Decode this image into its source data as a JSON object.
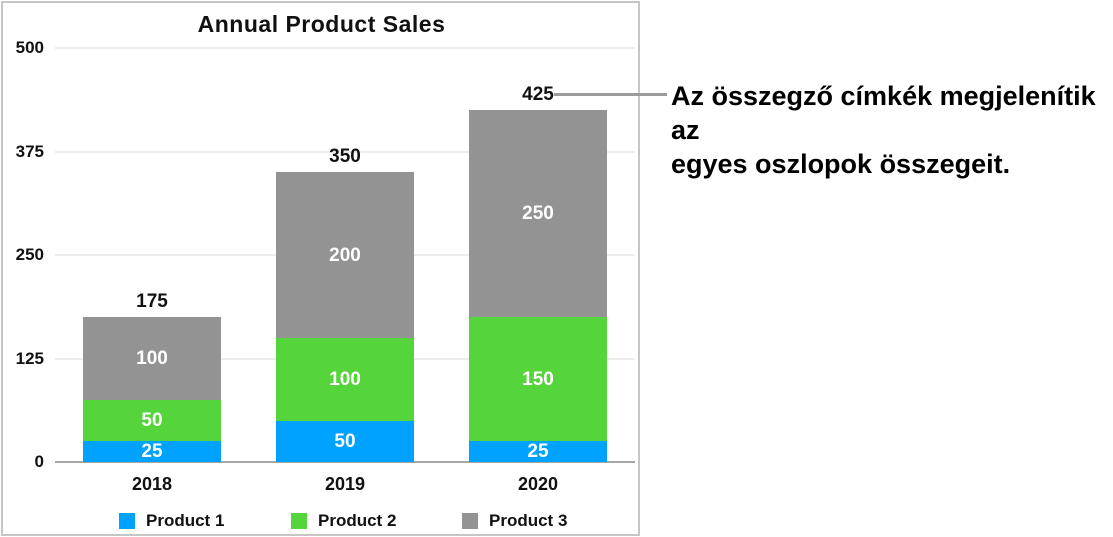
{
  "chart_data": {
    "type": "bar",
    "stacked": true,
    "title": "Annual Product Sales",
    "categories": [
      "2018",
      "2019",
      "2020"
    ],
    "series": [
      {
        "name": "Product 1",
        "color": "#00a2ff",
        "values": [
          25,
          50,
          25
        ]
      },
      {
        "name": "Product 2",
        "color": "#56d43c",
        "values": [
          50,
          100,
          150
        ]
      },
      {
        "name": "Product 3",
        "color": "#939393",
        "values": [
          100,
          200,
          250
        ]
      }
    ],
    "totals": [
      175,
      350,
      425
    ],
    "y_ticks": [
      0,
      125,
      250,
      375,
      500
    ],
    "ylim": [
      0,
      500
    ],
    "xlabel": "",
    "ylabel": "",
    "grid": true,
    "legend_position": "bottom"
  },
  "annotation": {
    "line1": "Az összegző címkék megjelenítik az",
    "line2": "egyes oszlopok összegeit.",
    "points_to_total": "425"
  },
  "colors": {
    "product1": "#00a2ff",
    "product2": "#56d43c",
    "product3": "#939393",
    "gridline": "#ececec",
    "axis_line": "#a5a5a5",
    "frame_border": "#c6c6c6",
    "callout_line": "#9b9b9b",
    "text": "#111111",
    "segment_label_text": "#ffffff",
    "background": "#ffffff"
  }
}
